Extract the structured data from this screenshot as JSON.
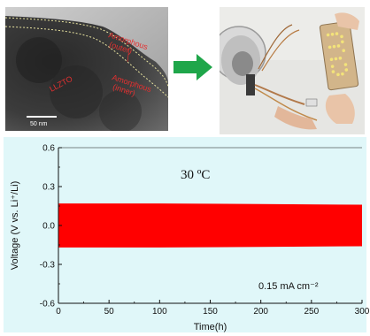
{
  "tem_panel": {
    "labels": {
      "amorphous_outer": "Amorphous\n(outer)",
      "amorphous_inner": "Amorphous\n(inner)",
      "llzto": "LLZTO",
      "scale_bar": "50 nm"
    },
    "annotation_color": "#e53030"
  },
  "arrow": {
    "color": "#1fa64a",
    "icon": "right-arrow-icon"
  },
  "photo_panel": {
    "description_icon": "battery-powered-led-display-photo"
  },
  "chart_data": {
    "type": "line",
    "title": "",
    "annotation_temperature": "30 ºC",
    "annotation_current": "0.15 mA cm⁻²",
    "xlabel": "Time(h)",
    "ylabel": "Voltage (V vs. Li⁺/Li)",
    "xlim": [
      0,
      300
    ],
    "ylim": [
      -0.6,
      0.6
    ],
    "x_ticks": [
      0,
      50,
      100,
      150,
      200,
      250,
      300
    ],
    "y_ticks": [
      -0.6,
      -0.3,
      0.0,
      0.3,
      0.6
    ],
    "y_tick_labels": [
      "-0.6",
      "-0.3",
      "0.0",
      "0.3",
      "0.6"
    ],
    "series": [
      {
        "values_description": "dense galvanostatic cycling band",
        "upper_envelope": [
          [
            0,
            0.17
          ],
          [
            100,
            0.17
          ],
          [
            200,
            0.165
          ],
          [
            300,
            0.16
          ]
        ],
        "lower_envelope": [
          [
            0,
            -0.17
          ],
          [
            100,
            -0.17
          ],
          [
            200,
            -0.165
          ],
          [
            300,
            -0.16
          ]
        ],
        "color": "#ff0000"
      }
    ],
    "background_color": "#e0f7f9",
    "grid": false
  }
}
